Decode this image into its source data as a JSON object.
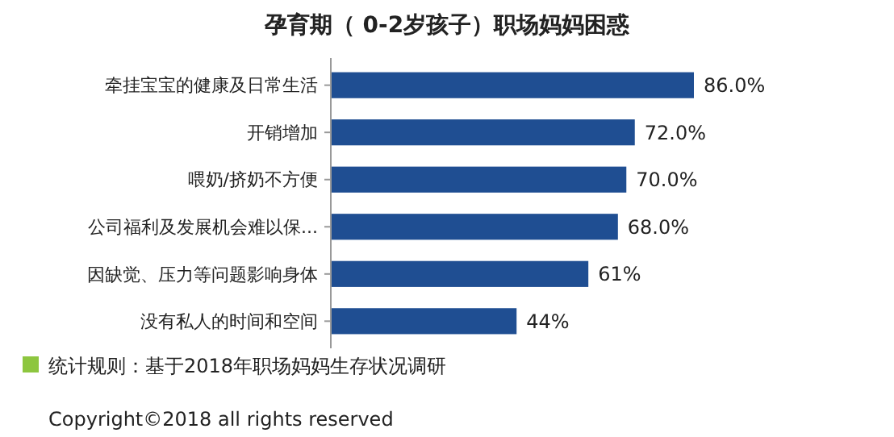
{
  "chart_data": {
    "type": "bar",
    "orientation": "horizontal",
    "title": "孕育期（ 0-2岁孩子）职场妈妈困惑",
    "categories": [
      "牵挂宝宝的健康及日常生活",
      "开销增加",
      "喂奶/挤奶不方便",
      "公司福利及发展机会难以保...",
      "因缺觉、压力等问题影响身体",
      "没有私人的时间和空间"
    ],
    "values": [
      86,
      72,
      70,
      68,
      61,
      44
    ],
    "value_labels": [
      "86.0%",
      "72.0%",
      "70.0%",
      "68.0%",
      "61%",
      "44%"
    ],
    "color": "#1f4e92",
    "annotations": [
      "统计规则：基于2018年职场妈妈生存状况调研",
      "Copyright©2018 all rights reserved"
    ]
  }
}
